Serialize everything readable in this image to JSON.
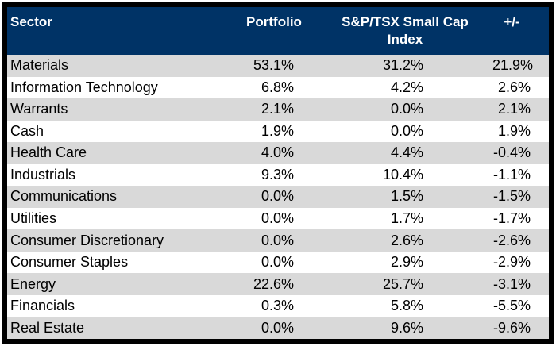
{
  "title": "Sector allocation vs benchmark table",
  "colors": {
    "header_bg": "#003366",
    "header_text": "#ffffff",
    "row_alt": "#d9d9d9",
    "row_base": "#ffffff",
    "border": "#000000",
    "body_text": "#000000"
  },
  "header": {
    "sector": "Sector",
    "portfolio": "Portfolio",
    "index_line1": "S&P/TSX Small Cap",
    "index_line2": "Index",
    "plus_minus": "+/-"
  },
  "chart_data": {
    "type": "table",
    "columns": [
      "Sector",
      "Portfolio",
      "S&P/TSX Small Cap Index",
      "+/-"
    ],
    "rows": [
      [
        "Materials",
        "53.1%",
        "31.2%",
        "21.9%"
      ],
      [
        "Information Technology",
        "6.8%",
        "4.2%",
        "2.6%"
      ],
      [
        "Warrants",
        "2.1%",
        "0.0%",
        "2.1%"
      ],
      [
        "Cash",
        "1.9%",
        "0.0%",
        "1.9%"
      ],
      [
        "Health Care",
        "4.0%",
        "4.4%",
        "-0.4%"
      ],
      [
        "Industrials",
        "9.3%",
        "10.4%",
        "-1.1%"
      ],
      [
        "Communications",
        "0.0%",
        "1.5%",
        "-1.5%"
      ],
      [
        "Utilities",
        "0.0%",
        "1.7%",
        "-1.7%"
      ],
      [
        "Consumer Discretionary",
        "0.0%",
        "2.6%",
        "-2.6%"
      ],
      [
        "Consumer Staples",
        "0.0%",
        "2.9%",
        "-2.9%"
      ],
      [
        "Energy",
        "22.6%",
        "25.7%",
        "-3.1%"
      ],
      [
        "Financials",
        "0.3%",
        "5.8%",
        "-5.5%"
      ],
      [
        "Real Estate",
        "0.0%",
        "9.6%",
        "-9.6%"
      ]
    ]
  }
}
